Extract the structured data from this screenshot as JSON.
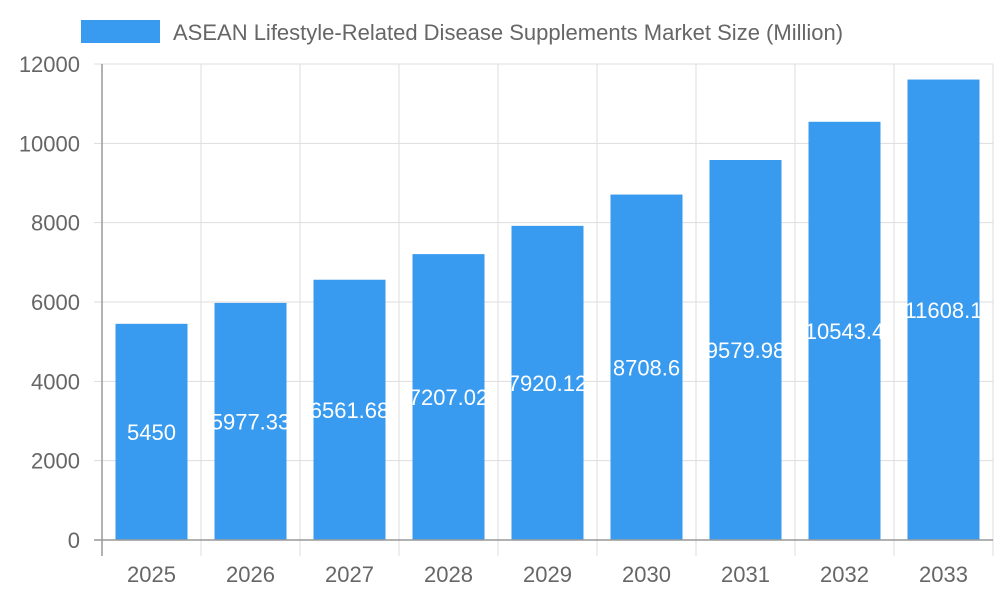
{
  "chart_data": {
    "type": "bar",
    "title": "",
    "xlabel": "",
    "ylabel": "",
    "categories": [
      "2025",
      "2026",
      "2027",
      "2028",
      "2029",
      "2030",
      "2031",
      "2032",
      "2033"
    ],
    "series": [
      {
        "name": "ASEAN Lifestyle-Related Disease Supplements Market Size (Million)",
        "values": [
          5450,
          5977.33,
          6561.68,
          7207.02,
          7920.12,
          8708.6,
          9579.98,
          10543.4,
          11608.1
        ],
        "labels": [
          "5450",
          "5977.33",
          "6561.68",
          "7207.02",
          "7920.12",
          "8708.6",
          "9579.98",
          "10543.4",
          "11608.1"
        ],
        "color": "#399BEF"
      }
    ],
    "ylim": [
      0,
      12000
    ],
    "yticks": [
      "0",
      "2000",
      "4000",
      "6000",
      "8000",
      "10000",
      "12000"
    ],
    "grid": true,
    "legend": "top"
  }
}
